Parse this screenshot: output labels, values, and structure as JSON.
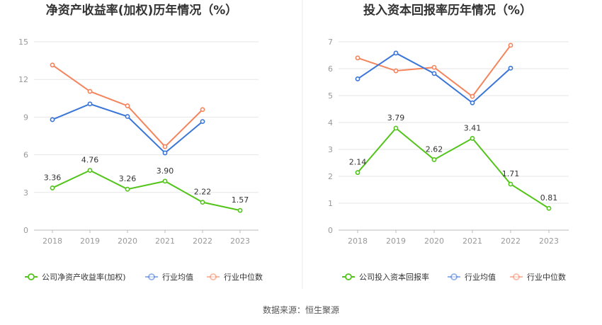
{
  "footer": {
    "source": "数据来源：恒生聚源"
  },
  "colors": {
    "company": "#52c41a",
    "avg": "#3a75d8",
    "median": "#f5845c",
    "grid": "#e6e6e6",
    "axis": "#999999",
    "title": "#333333",
    "divider": "#e8e8e8"
  },
  "chart_data": [
    {
      "type": "line",
      "title": "净资产收益率(加权)历年情况（%）",
      "categories": [
        "2018",
        "2019",
        "2020",
        "2021",
        "2022",
        "2023"
      ],
      "ylim": [
        0,
        15
      ],
      "yticks": [
        "0",
        "3",
        "6",
        "9",
        "12",
        "15"
      ],
      "grid": true,
      "legend_position": "bottom",
      "series": [
        {
          "name": "公司净资产收益率(加权)",
          "key": "company",
          "values": [
            3.36,
            4.76,
            3.26,
            3.9,
            2.22,
            1.57
          ],
          "labels": [
            "3.36",
            "4.76",
            "3.26",
            "3.90",
            "2.22",
            "1.57"
          ]
        },
        {
          "name": "行业均值",
          "key": "avg",
          "values": [
            8.8,
            10.05,
            9.05,
            6.15,
            8.65,
            null
          ]
        },
        {
          "name": "行业中位数",
          "key": "median",
          "values": [
            13.15,
            11.05,
            9.9,
            6.65,
            9.6,
            null
          ]
        }
      ]
    },
    {
      "type": "line",
      "title": "投入资本回报率历年情况（%）",
      "categories": [
        "2018",
        "2019",
        "2020",
        "2021",
        "2022",
        "2023"
      ],
      "ylim": [
        0,
        7
      ],
      "yticks": [
        "0",
        "1",
        "2",
        "3",
        "4",
        "5",
        "6",
        "7"
      ],
      "grid": true,
      "legend_position": "bottom",
      "series": [
        {
          "name": "公司投入资本回报率",
          "key": "company",
          "values": [
            2.14,
            3.79,
            2.62,
            3.41,
            1.71,
            0.81
          ],
          "labels": [
            "2.14",
            "3.79",
            "2.62",
            "3.41",
            "1.71",
            "0.81"
          ]
        },
        {
          "name": "行业均值",
          "key": "avg",
          "values": [
            5.62,
            6.58,
            5.82,
            4.73,
            6.02,
            null
          ]
        },
        {
          "name": "行业中位数",
          "key": "median",
          "values": [
            6.4,
            5.92,
            6.05,
            4.97,
            6.87,
            null
          ]
        }
      ]
    }
  ]
}
